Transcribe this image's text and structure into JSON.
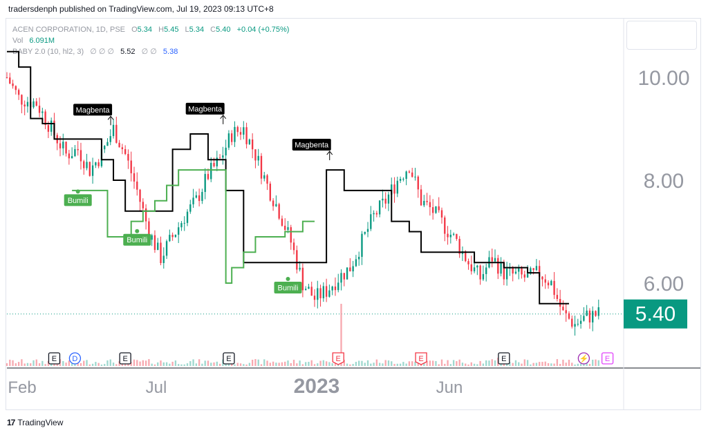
{
  "publisher_line": "tradersdenph published on TradingView.com, Jul 19, 2023 09:13 UTC+8",
  "legend": {
    "symbol": "ACEN CORPORATION, 1D, PSE",
    "o_label": "O",
    "o_val": "5.34",
    "h_label": "H",
    "h_val": "5.45",
    "l_label": "L",
    "l_val": "5.34",
    "c_label": "C",
    "c_val": "5.40",
    "change": "+0.04 (+0.75%)",
    "vol_label": "Vol",
    "vol_val": "6.091M",
    "indicator": "BABY 2.0 (10, hl2, 3)",
    "ind_na": "∅ ∅ ∅",
    "ind_v1": "5.52",
    "ind_na2": "∅ ∅",
    "ind_v2": "5.38"
  },
  "last_price_label": "5.40",
  "footer": {
    "logo": "17",
    "brand": "TradingView"
  },
  "colors": {
    "up": "#089981",
    "down": "#f23645",
    "support": "#4caf50",
    "resistance": "#000000",
    "last_price": "#089981"
  },
  "chart_data": {
    "type": "candlestick",
    "y_axis": {
      "ticks": [
        10.0,
        8.0,
        6.0
      ],
      "ylim": [
        4.95,
        10.8
      ],
      "side": "right"
    },
    "x_axis": {
      "ticks": [
        "Feb",
        "Jul",
        "2023",
        "Jun"
      ]
    },
    "last_price": 5.4,
    "close_trend": [
      [
        0,
        10.0
      ],
      [
        2,
        9.6
      ],
      [
        5,
        9.5
      ],
      [
        8,
        8.9
      ],
      [
        10,
        8.5
      ],
      [
        12,
        8.6
      ],
      [
        14,
        8.2
      ],
      [
        16,
        8.5
      ],
      [
        18,
        9.0
      ],
      [
        20,
        8.5
      ],
      [
        22,
        7.8
      ],
      [
        24,
        7.0
      ],
      [
        26,
        6.5
      ],
      [
        28,
        6.9
      ],
      [
        30,
        7.3
      ],
      [
        32,
        7.6
      ],
      [
        34,
        8.1
      ],
      [
        36,
        8.4
      ],
      [
        38,
        8.9
      ],
      [
        40,
        9.0
      ],
      [
        42,
        8.5
      ],
      [
        44,
        7.9
      ],
      [
        46,
        7.4
      ],
      [
        48,
        6.8
      ],
      [
        50,
        6.0
      ],
      [
        52,
        5.7
      ],
      [
        54,
        5.85
      ],
      [
        56,
        6.1
      ],
      [
        58,
        6.3
      ],
      [
        60,
        6.8
      ],
      [
        62,
        7.3
      ],
      [
        64,
        7.6
      ],
      [
        66,
        8.0
      ],
      [
        68,
        8.3
      ],
      [
        70,
        7.6
      ],
      [
        72,
        7.4
      ],
      [
        74,
        7.1
      ],
      [
        76,
        6.8
      ],
      [
        78,
        6.4
      ],
      [
        80,
        6.1
      ],
      [
        82,
        6.5
      ],
      [
        84,
        6.2
      ],
      [
        86,
        6.15
      ],
      [
        88,
        6.1
      ],
      [
        90,
        6.2
      ],
      [
        92,
        6.0
      ],
      [
        94,
        5.4
      ],
      [
        96,
        5.2
      ],
      [
        98,
        5.35
      ],
      [
        100,
        5.4
      ]
    ],
    "series": [
      {
        "name": "",
        "color": "#000000",
        "steps": [
          [
            0,
            10.5
          ],
          [
            2,
            10.2
          ],
          [
            4,
            9.2
          ],
          [
            6,
            9.1
          ],
          [
            8,
            8.8
          ],
          [
            12,
            8.8
          ],
          [
            16,
            8.4
          ],
          [
            18,
            8.0
          ],
          [
            20,
            7.4
          ],
          [
            24,
            7.4
          ],
          [
            28,
            8.6
          ],
          [
            31,
            8.9
          ],
          [
            34,
            8.4
          ],
          [
            37,
            7.8
          ],
          [
            40,
            6.4
          ],
          [
            48,
            6.4
          ],
          [
            54,
            8.2
          ],
          [
            57,
            7.8
          ],
          [
            61,
            7.8
          ],
          [
            65,
            7.2
          ],
          [
            68,
            7.0
          ],
          [
            70,
            6.6
          ],
          [
            75,
            6.6
          ],
          [
            79,
            6.4
          ],
          [
            84,
            6.3
          ],
          [
            88,
            6.2
          ],
          [
            90,
            5.6
          ],
          [
            95,
            5.6
          ]
        ]
      },
      {
        "name": "",
        "color": "#4caf50",
        "steps": [
          [
            11,
            7.8
          ],
          [
            14,
            7.8
          ],
          [
            17,
            6.9
          ],
          [
            20,
            6.9
          ],
          [
            21,
            7.2
          ],
          [
            23,
            7.4
          ],
          [
            25,
            7.6
          ],
          [
            27,
            7.9
          ],
          [
            29,
            8.2
          ],
          [
            31,
            8.2
          ],
          [
            37,
            6.0
          ],
          [
            38,
            6.3
          ],
          [
            40,
            6.6
          ],
          [
            42,
            6.9
          ],
          [
            45,
            6.9
          ],
          [
            47,
            7.0
          ],
          [
            50,
            7.2
          ],
          [
            52,
            7.2
          ]
        ]
      }
    ],
    "annotations": [
      {
        "text": "Magbenta",
        "x": 14.5,
        "price": 9.23,
        "kind": "sell"
      },
      {
        "text": "Magbenta",
        "x": 33.5,
        "price": 9.25,
        "kind": "sell"
      },
      {
        "text": "Magbenta",
        "x": 51.5,
        "price": 8.55,
        "kind": "sell"
      },
      {
        "text": "Bumili",
        "x": 12,
        "price": 7.7,
        "kind": "buy"
      },
      {
        "text": "Bumili",
        "x": 22,
        "price": 6.93,
        "kind": "buy"
      },
      {
        "text": "Bumili",
        "x": 47.5,
        "price": 6.0,
        "kind": "buy"
      }
    ],
    "events": [
      {
        "label": "E",
        "x": 8,
        "kind": "earnings"
      },
      {
        "label": "D",
        "x": 11.5,
        "kind": "dividend"
      },
      {
        "label": "E",
        "x": 20,
        "kind": "earnings"
      },
      {
        "label": "E",
        "x": 37.5,
        "kind": "earnings"
      },
      {
        "label": "E",
        "x": 56,
        "kind": "earnings-red"
      },
      {
        "label": "E",
        "x": 70,
        "kind": "earnings-red"
      },
      {
        "label": "E",
        "x": 84,
        "kind": "earnings"
      },
      {
        "label": "⚡",
        "x": 97.5,
        "kind": "split"
      },
      {
        "label": "E",
        "x": 101.5,
        "kind": "earnings-purple"
      }
    ]
  }
}
